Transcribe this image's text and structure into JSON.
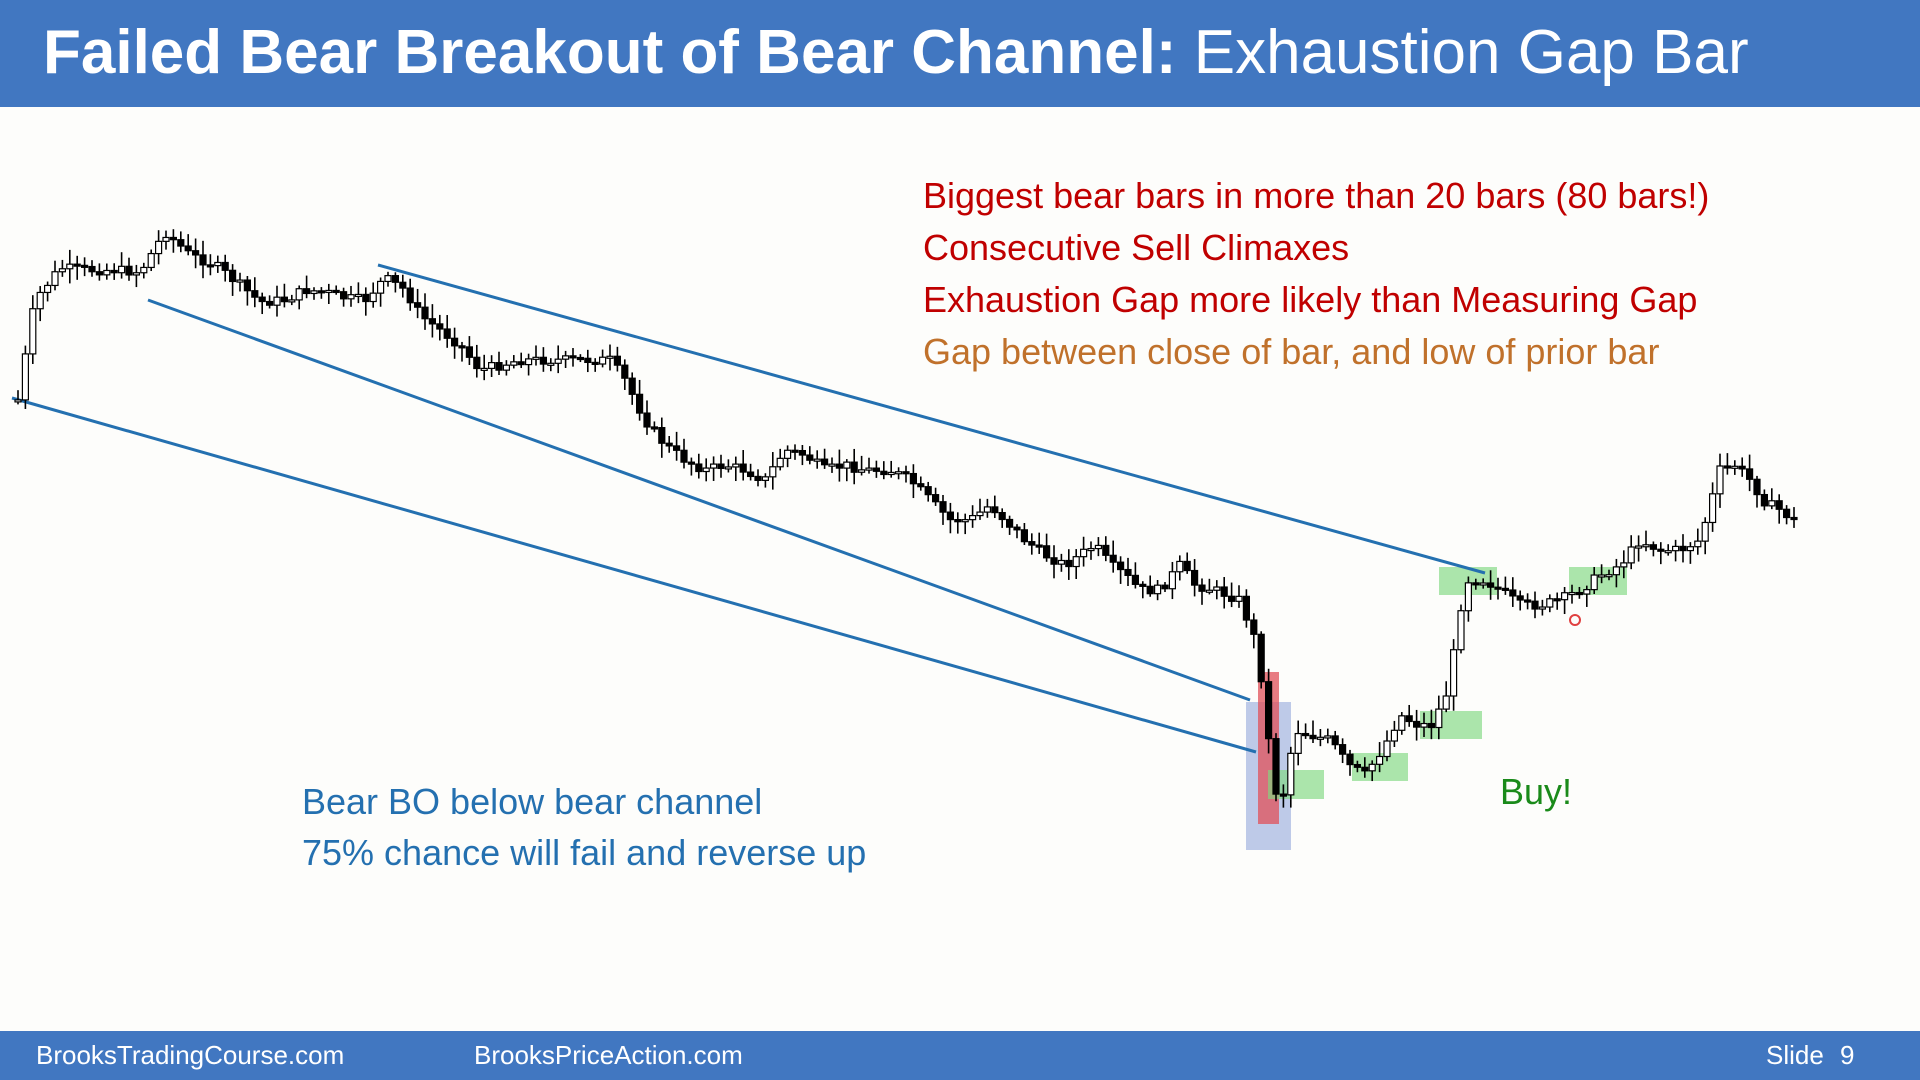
{
  "slide": {
    "title_bold": "Failed Bear Breakout of Bear Channel:",
    "title_rest": "Exhaustion Gap Bar",
    "notes_top": [
      {
        "text": "Biggest bear bars in more than 20 bars (80 bars!)",
        "color": "#c00000"
      },
      {
        "text": "Consecutive Sell Climaxes",
        "color": "#c00000"
      },
      {
        "text": "Exhaustion Gap more likely than Measuring Gap",
        "color": "#c00000"
      },
      {
        "text": "Gap between close of bar, and low of prior bar",
        "color": "#c0712b"
      }
    ],
    "notes_bottom": [
      "Bear BO below bear channel",
      "75% chance will fail and reverse up"
    ],
    "buy_label": "Buy!",
    "colors": {
      "header": "#4177c1",
      "channel_line": "#2470b0",
      "bear_bar": "#000000",
      "bull_bar": "#ffffff",
      "highlight_red": "#e0505a",
      "highlight_blue": "#8aa0d8",
      "highlight_green": "#7fd87f",
      "bottom_note": "#2470b0",
      "buy": "#1a8a1a"
    }
  },
  "footer": {
    "left": "BrooksTradingCourse.com",
    "center": "BrooksPriceAction.com",
    "slide_label": "Slide",
    "slide_number": "9"
  }
}
